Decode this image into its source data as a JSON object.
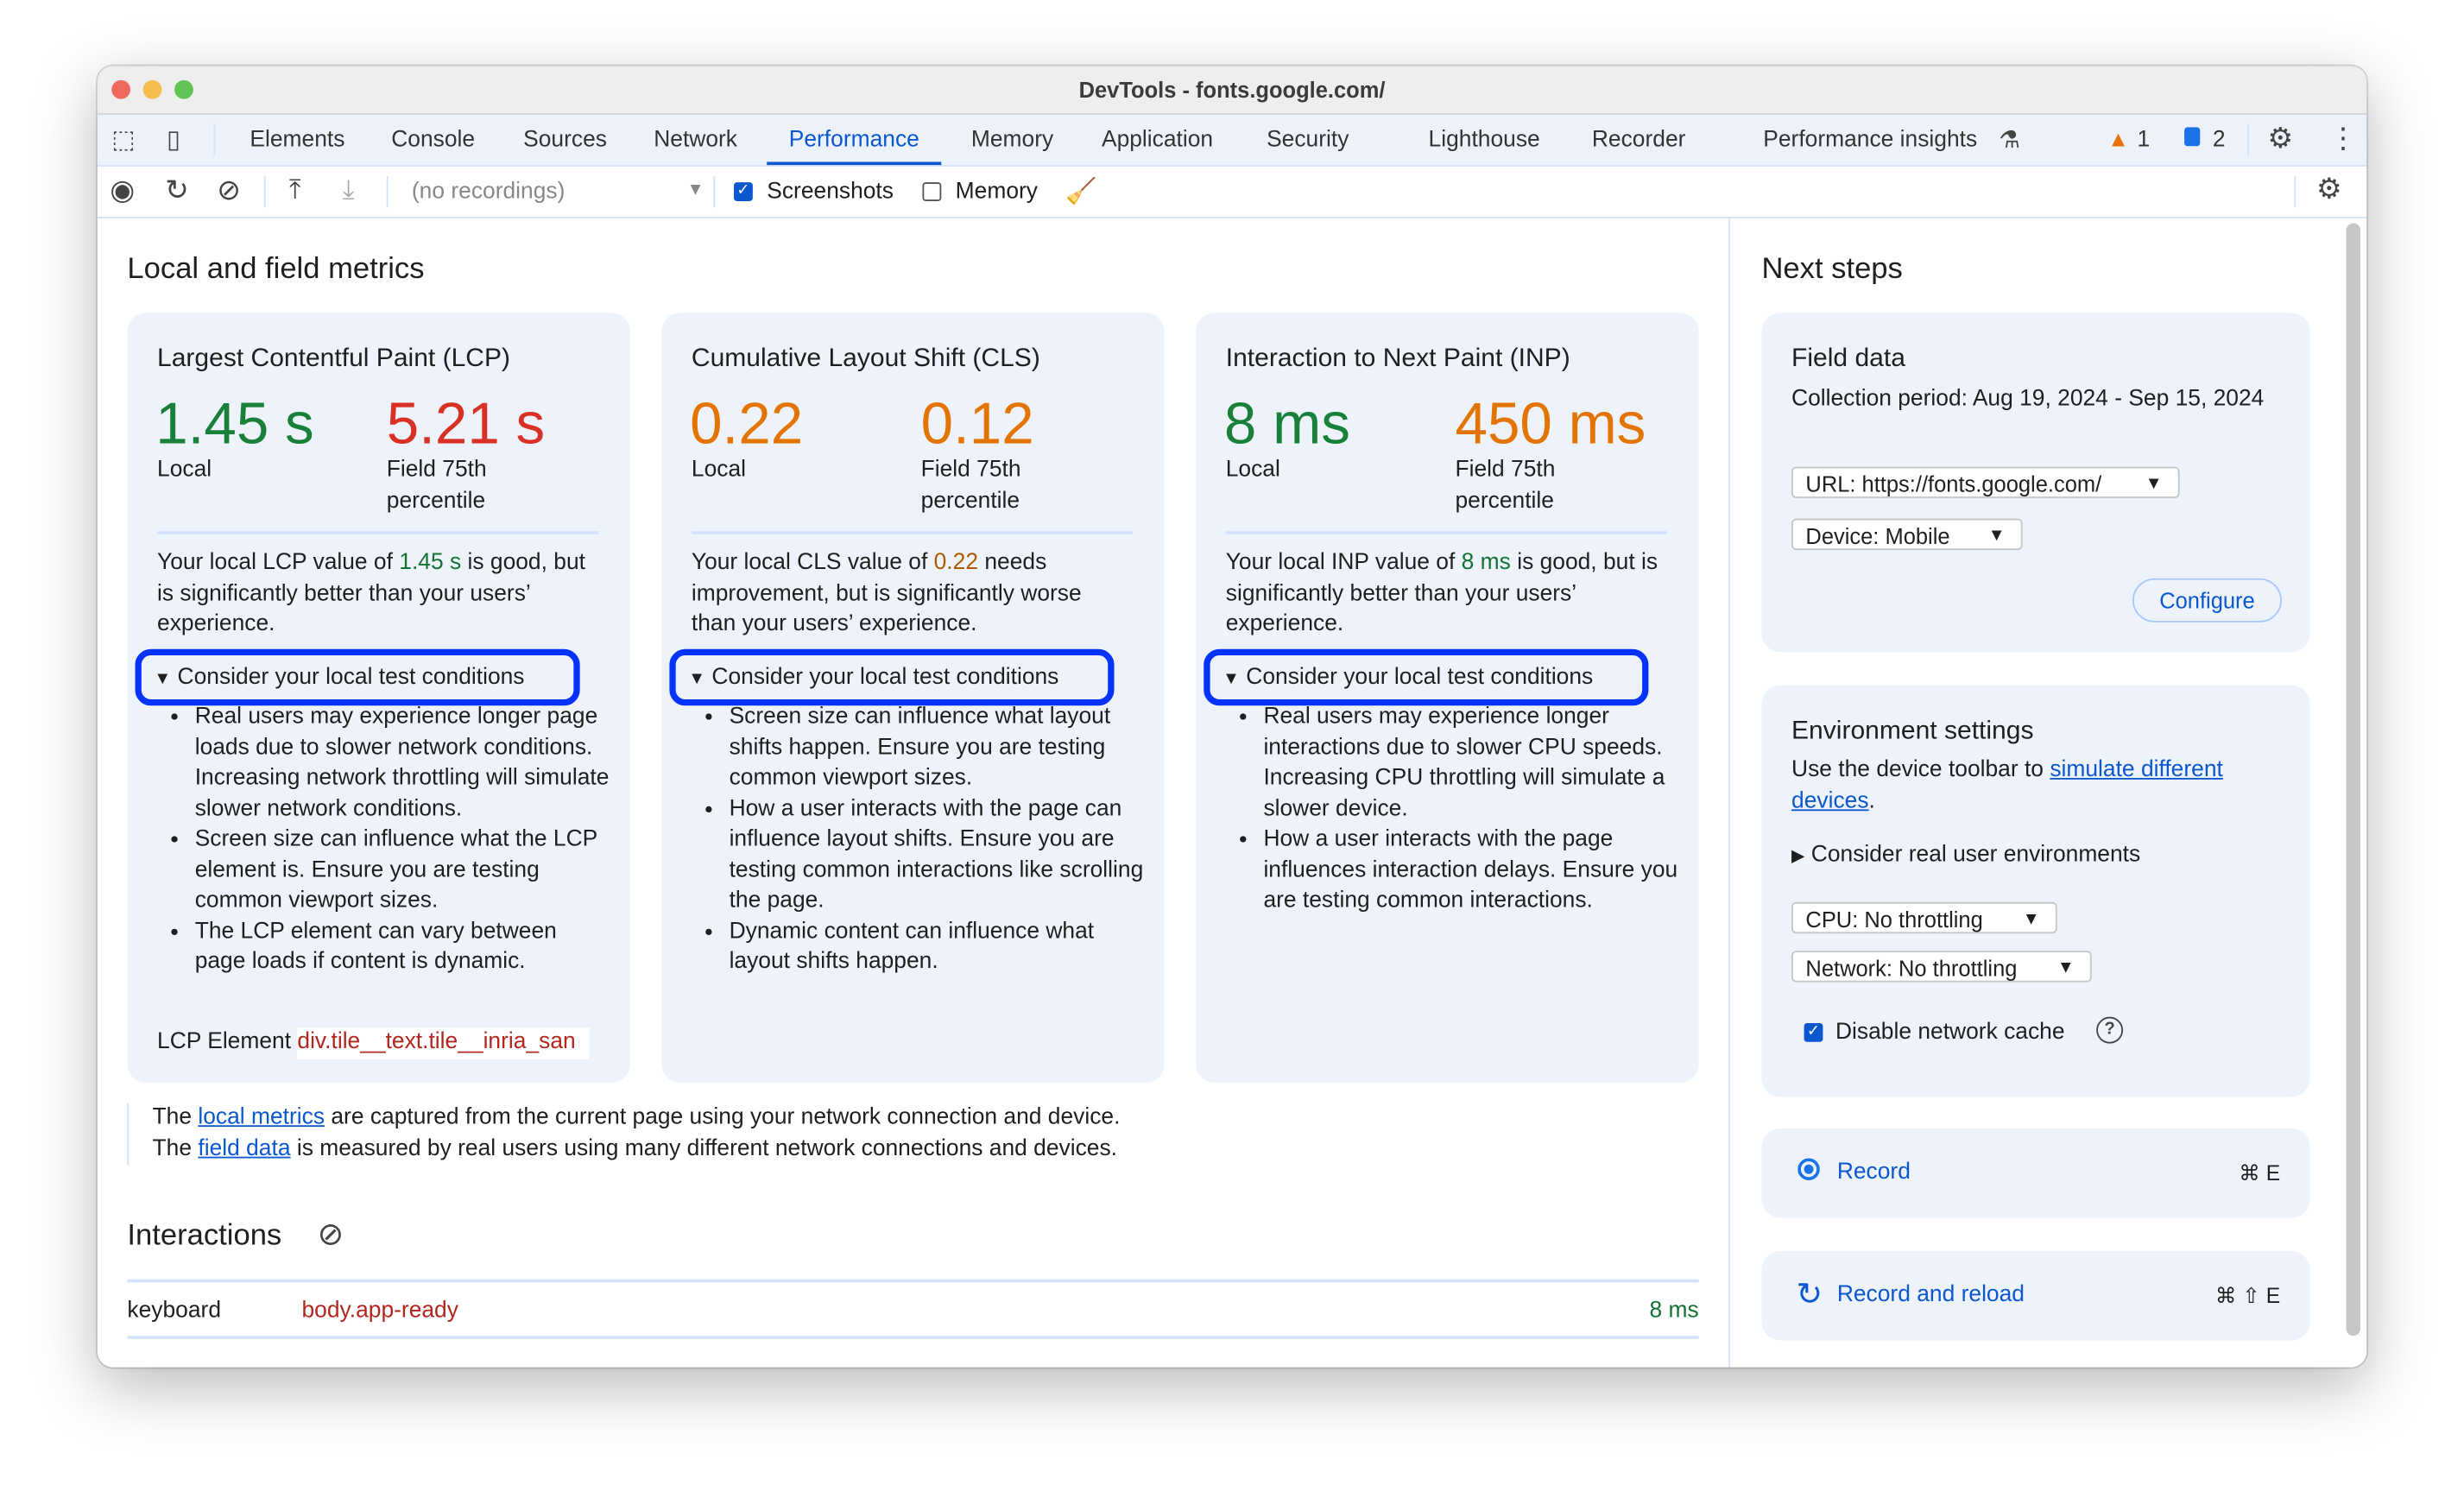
{
  "window": {
    "title": "DevTools - fonts.google.com/"
  },
  "tabs": [
    "Elements",
    "Console",
    "Sources",
    "Network",
    "Performance",
    "Memory",
    "Application",
    "Security",
    "Lighthouse",
    "Recorder",
    "Performance insights"
  ],
  "active_tab": "Performance",
  "badges": {
    "warnings": "1",
    "messages": "2"
  },
  "toolbar": {
    "recordings_placeholder": "(no recordings)",
    "screenshots_label": "Screenshots",
    "screenshots_checked": true,
    "memory_label": "Memory",
    "memory_checked": false
  },
  "main": {
    "title": "Local and field metrics",
    "cards": [
      {
        "title": "Largest Contentful Paint (LCP)",
        "local_value": "1.45 s",
        "local_label": "Local",
        "field_value": "5.21 s",
        "field_label_1": "Field 75th",
        "field_label_2": "percentile",
        "desc_pre": "Your local LCP value of ",
        "desc_val": "1.45 s",
        "desc_post": " is good, but is significantly better than your users’ experience.",
        "details_label": "Consider your local test conditions",
        "bullets": [
          "Real users may experience longer page loads due to slower network conditions. Increasing network throttling will simulate slower network conditions.",
          "Screen size can influence what the LCP element is. Ensure you are testing common viewport sizes.",
          "The LCP element can vary between page loads if content is dynamic."
        ],
        "element_label": "LCP Element",
        "element_value": "div.tile__text.tile__inria_san"
      },
      {
        "title": "Cumulative Layout Shift (CLS)",
        "local_value": "0.22",
        "local_label": "Local",
        "field_value": "0.12",
        "field_label_1": "Field 75th",
        "field_label_2": "percentile",
        "desc_pre": "Your local CLS value of ",
        "desc_val": "0.22",
        "desc_post": " needs improvement, but is significantly worse than your users’ experience.",
        "details_label": "Consider your local test conditions",
        "bullets": [
          "Screen size can influence what layout shifts happen. Ensure you are testing common viewport sizes.",
          "How a user interacts with the page can influence layout shifts. Ensure you are testing common interactions like scrolling the page.",
          "Dynamic content can influence what layout shifts happen."
        ]
      },
      {
        "title": "Interaction to Next Paint (INP)",
        "local_value": "8 ms",
        "local_label": "Local",
        "field_value": "450 ms",
        "field_label_1": "Field 75th",
        "field_label_2": "percentile",
        "desc_pre": "Your local INP value of ",
        "desc_val": "8 ms",
        "desc_post": " is good, but is significantly better than your users’ experience.",
        "details_label": "Consider your local test conditions",
        "bullets": [
          "Real users may experience longer interactions due to slower CPU speeds. Increasing CPU throttling will simulate a slower device.",
          "How a user interacts with the page influences interaction delays. Ensure you are testing common interactions."
        ]
      }
    ],
    "footnote": {
      "l1_pre": "The ",
      "l1_link": "local metrics",
      "l1_post": " are captured from the current page using your network connection and device.",
      "l2_pre": "The ",
      "l2_link": "field data",
      "l2_post": " is measured by real users using many different network connections and devices."
    },
    "interactions": {
      "title": "Interactions",
      "rows": [
        {
          "type": "keyboard",
          "target": "body.app-ready",
          "duration": "8 ms"
        }
      ]
    }
  },
  "side": {
    "title": "Next steps",
    "field": {
      "title": "Field data",
      "period": "Collection period: Aug 19, 2024 - Sep 15, 2024",
      "url_select": "URL: https://fonts.google.com/",
      "device_select": "Device: Mobile",
      "configure": "Configure"
    },
    "env": {
      "title": "Environment settings",
      "text_pre": "Use the device toolbar to ",
      "link": "simulate different devices",
      "text_post": ".",
      "details": "Consider real user environments",
      "cpu_select": "CPU: No throttling",
      "network_select": "Network: No throttling",
      "cache_label": "Disable network cache",
      "cache_checked": true
    },
    "record": {
      "label": "Record",
      "shortcut": "⌘ E"
    },
    "reload": {
      "label": "Record and reload",
      "shortcut": "⌘ ⇧ E"
    }
  },
  "colors": {
    "good": "#188038",
    "poor": "#d93025",
    "needs_improvement": "#e37400",
    "accent": "#0b57d0",
    "highlight": "#0433ff"
  }
}
